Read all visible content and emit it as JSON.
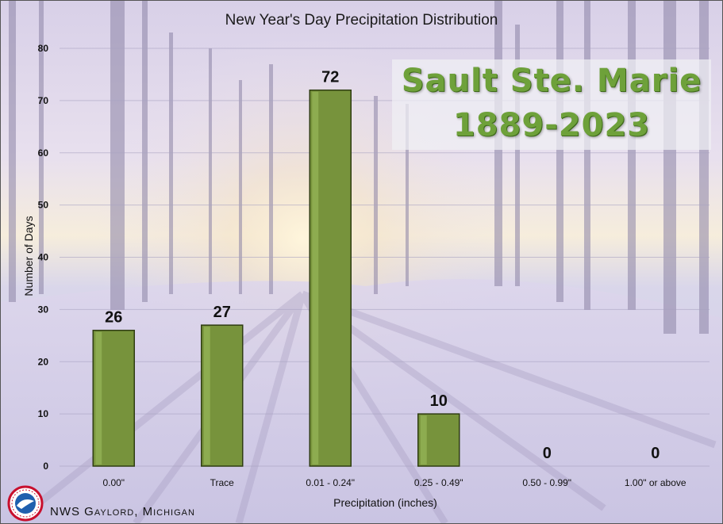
{
  "chart_data": {
    "type": "bar",
    "title": "New Year's Day Precipitation Distribution",
    "categories": [
      "0.00\"",
      "Trace",
      "0.01 - 0.24\"",
      "0.25 - 0.49\"",
      "0.50 - 0.99\"",
      "1.00\" or above"
    ],
    "values": [
      26,
      27,
      72,
      10,
      0,
      0
    ],
    "data_labels": [
      "26",
      "27",
      "72",
      "10",
      "0",
      "0"
    ],
    "xlabel": "Precipitation (inches)",
    "ylabel": "Number of Days",
    "ylim": [
      0,
      80
    ],
    "yticks": [
      0,
      10,
      20,
      30,
      40,
      50,
      60,
      70,
      80
    ],
    "grid": true,
    "bar_color": "#77933c"
  },
  "overlay": {
    "location": "Sault Ste. Marie",
    "period": "1889-2023"
  },
  "footer": {
    "office": "NWS Gaylord, Michigan"
  },
  "logo": {
    "icon": "noaa-nws-logo",
    "text": "NATIONAL WEATHER SERVICE"
  }
}
